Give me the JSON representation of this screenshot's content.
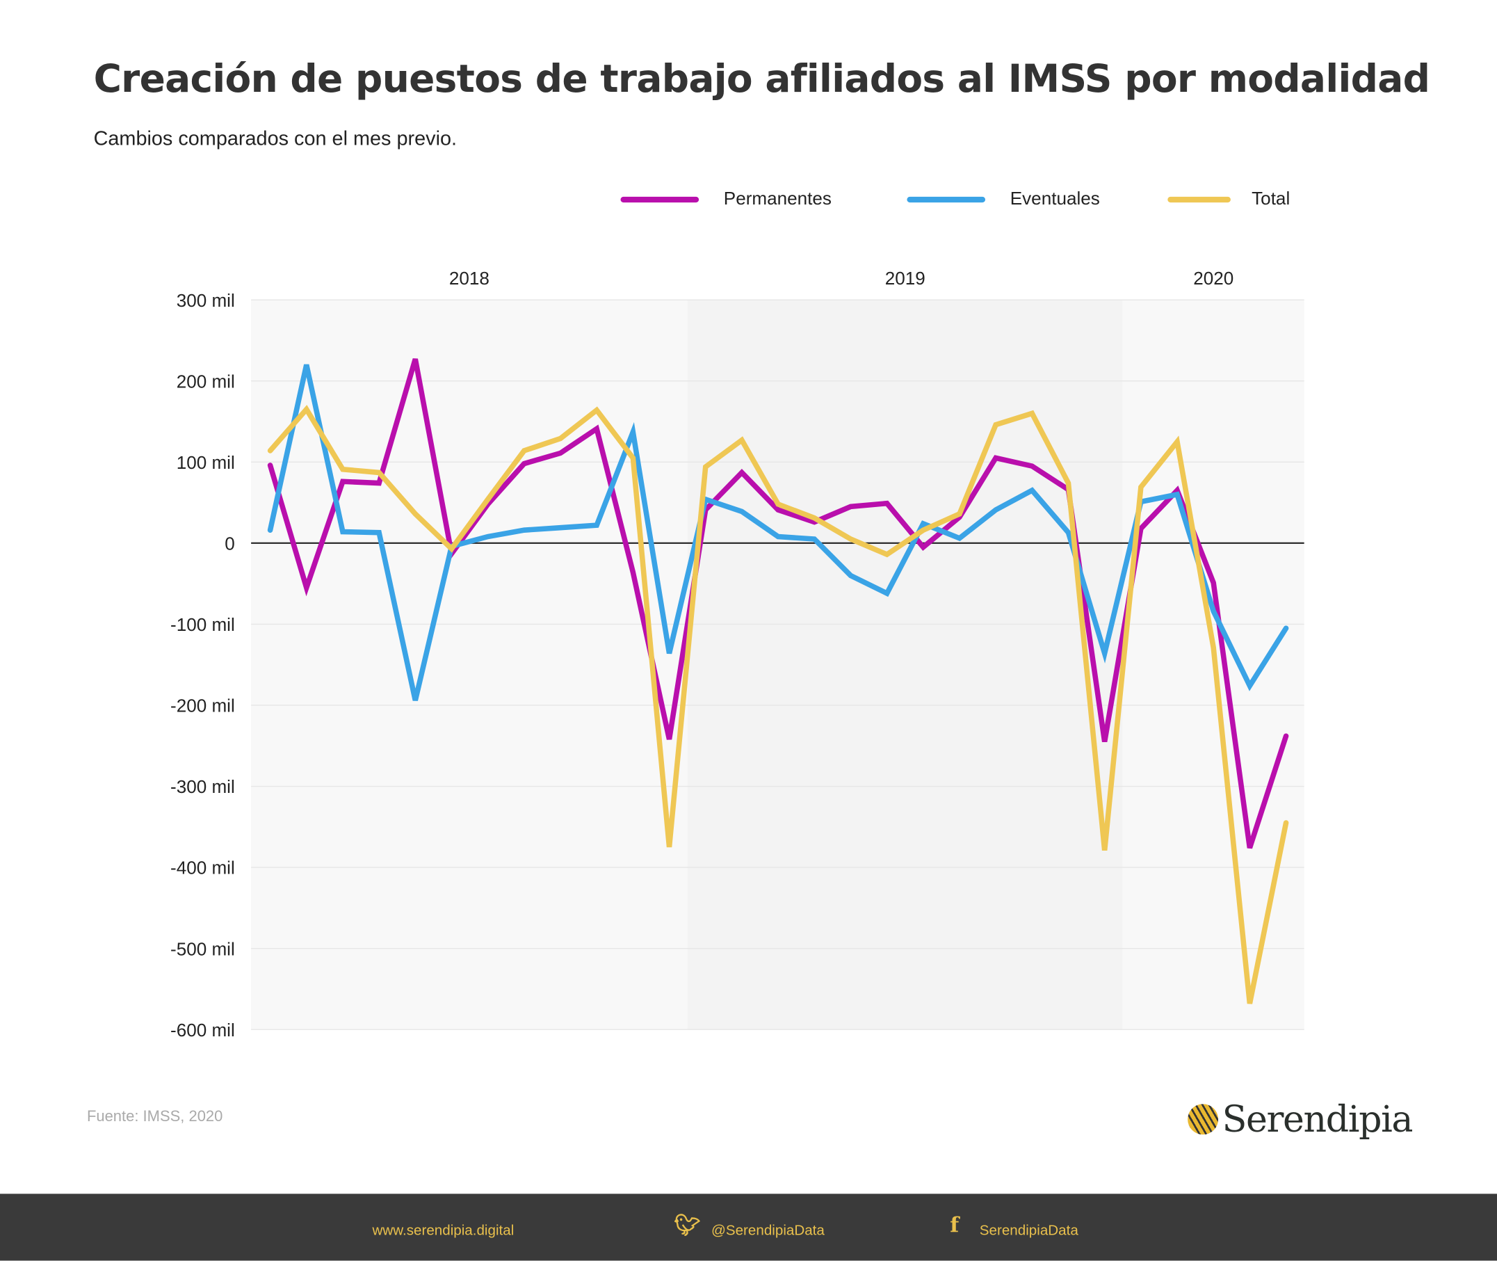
{
  "header": {
    "title": "Creación de puestos de trabajo afiliados al IMSS por modalidad",
    "subtitle": "Cambios comparados con el mes previo."
  },
  "source": "Fuente: IMSS, 2020",
  "logo": {
    "text": "Serendipia"
  },
  "footer": {
    "website": "www.serendipia.digital",
    "twitter": "@SerendipiaData",
    "facebook": "SerendipiaData",
    "twitter_icon": "twitter-icon",
    "facebook_icon": "facebook-icon"
  },
  "chart_data": {
    "type": "line",
    "title": "Creación de puestos de trabajo afiliados al IMSS por modalidad",
    "subtitle": "Cambios comparados con el mes previo.",
    "xlabel": "",
    "ylabel": "",
    "year_labels": [
      {
        "label": "2018",
        "start": 0,
        "end": 12
      },
      {
        "label": "2019",
        "start": 12,
        "end": 24
      },
      {
        "label": "2020",
        "start": 24,
        "end": 29
      }
    ],
    "x": [
      "2018-01",
      "2018-02",
      "2018-03",
      "2018-04",
      "2018-05",
      "2018-06",
      "2018-07",
      "2018-08",
      "2018-09",
      "2018-10",
      "2018-11",
      "2018-12",
      "2019-01",
      "2019-02",
      "2019-03",
      "2019-04",
      "2019-05",
      "2019-06",
      "2019-07",
      "2019-08",
      "2019-09",
      "2019-10",
      "2019-11",
      "2019-12",
      "2020-01",
      "2020-02",
      "2020-03",
      "2020-04",
      "2020-05"
    ],
    "ylim": [
      -600,
      300
    ],
    "yticks": [
      300,
      200,
      100,
      0,
      -100,
      -200,
      -300,
      -400,
      -500,
      -600
    ],
    "ytick_labels": [
      "300 mil",
      "200 mil",
      "100 mil",
      "0",
      "-100 mil",
      "-200 mil",
      "-300 mil",
      "-400 mil",
      "-500 mil",
      "-600 mil"
    ],
    "grid": true,
    "legend_position": "top-right",
    "series": [
      {
        "name": "Permanentes",
        "color": "#b90fac",
        "values": [
          96,
          -55,
          76,
          74,
          227,
          -13,
          48,
          98,
          111,
          141,
          -36,
          -242,
          41,
          87,
          41,
          26,
          45,
          49,
          -5,
          32,
          105,
          95,
          66,
          -245,
          18,
          65,
          -49,
          -376,
          -238
        ]
      },
      {
        "name": "Eventuales",
        "color": "#3aa3e6",
        "values": [
          16,
          220,
          14,
          13,
          -194,
          -4,
          8,
          16,
          19,
          22,
          137,
          -136,
          54,
          39,
          8,
          5,
          -40,
          -62,
          24,
          6,
          41,
          65,
          13,
          -136,
          51,
          60,
          -84,
          -176,
          -105
        ]
      },
      {
        "name": "Total",
        "color": "#efc754",
        "values": [
          114,
          165,
          91,
          87,
          36,
          -7,
          54,
          114,
          129,
          164,
          105,
          -375,
          94,
          127,
          48,
          31,
          5,
          -14,
          16,
          36,
          146,
          160,
          74,
          -379,
          69,
          125,
          -129,
          -568,
          -345
        ]
      }
    ]
  }
}
